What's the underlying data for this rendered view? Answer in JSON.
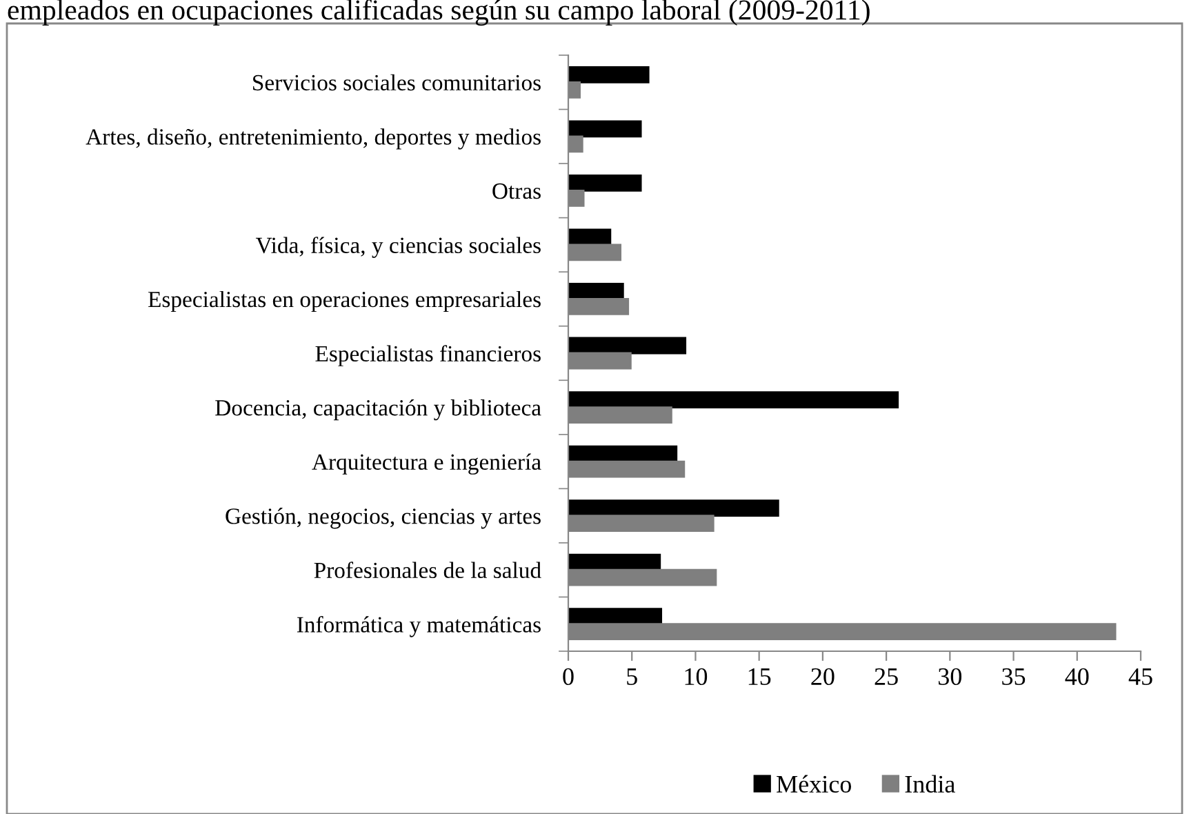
{
  "chart_data": {
    "type": "bar",
    "orientation": "horizontal",
    "title": "empleados en ocupaciones calificadas según su campo laboral (2009-2011)",
    "categories": [
      "Servicios sociales comunitarios",
      "Artes, diseño, entretenimiento, deportes y medios",
      "Otras",
      "Vida, física, y ciencias sociales",
      "Especialistas en operaciones empresariales",
      "Especialistas financieros",
      "Docencia, capacitación y biblioteca",
      "Arquitectura e ingeniería",
      "Gestión, negocios, ciencias y artes",
      "Profesionales de la salud",
      "Informática y matemáticas"
    ],
    "series": [
      {
        "name": "México",
        "color": "#000000",
        "values": [
          6.3,
          5.7,
          5.7,
          3.3,
          4.3,
          9.2,
          25.9,
          8.5,
          16.5,
          7.2,
          7.3
        ]
      },
      {
        "name": "India",
        "color": "#7f7f7f",
        "values": [
          0.9,
          1.1,
          1.2,
          4.1,
          4.7,
          4.9,
          8.1,
          9.1,
          11.4,
          11.6,
          43.0
        ]
      }
    ],
    "xlim": [
      0,
      45
    ],
    "xticks": [
      0,
      5,
      10,
      15,
      20,
      25,
      30,
      35,
      40,
      45
    ],
    "grid": false,
    "legend": "bottom"
  }
}
